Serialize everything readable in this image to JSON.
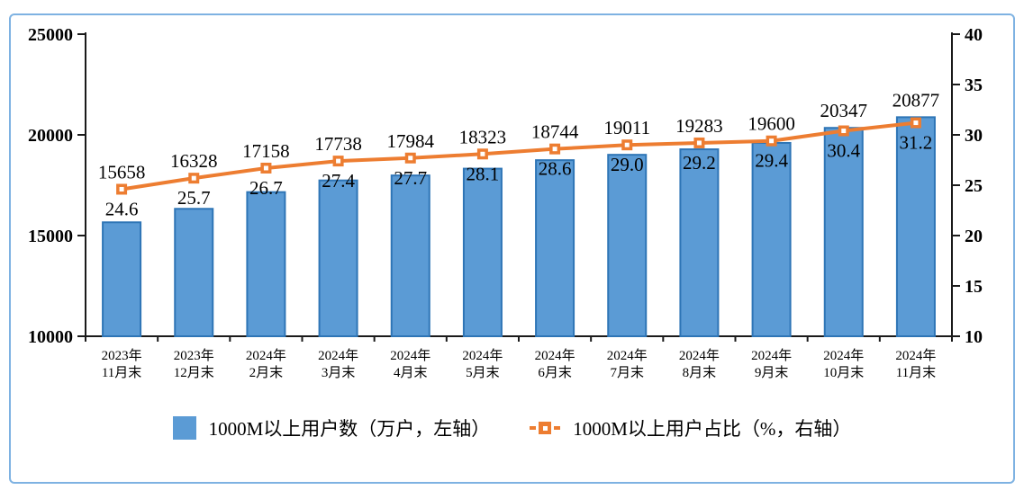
{
  "chart_data": {
    "type": "bar+line combo",
    "title": "",
    "categories": [
      [
        "2023年",
        "11月末"
      ],
      [
        "2023年",
        "12月末"
      ],
      [
        "2024年",
        "2月末"
      ],
      [
        "2024年",
        "3月末"
      ],
      [
        "2024年",
        "4月末"
      ],
      [
        "2024年",
        "5月末"
      ],
      [
        "2024年",
        "6月末"
      ],
      [
        "2024年",
        "7月末"
      ],
      [
        "2024年",
        "8月末"
      ],
      [
        "2024年",
        "9月末"
      ],
      [
        "2024年",
        "10月末"
      ],
      [
        "2024年",
        "11月末"
      ]
    ],
    "series": [
      {
        "name": "1000M以上用户数（万户，左轴）",
        "type": "bar",
        "axis": "left",
        "values": [
          15658,
          16328,
          17158,
          17738,
          17984,
          18323,
          18744,
          19011,
          19283,
          19600,
          20347,
          20877
        ],
        "fill": "#5B9BD5",
        "stroke": "#2E75B6"
      },
      {
        "name": "1000M以上用户占比（%，右轴）",
        "type": "line",
        "axis": "right",
        "values": [
          24.6,
          25.7,
          26.7,
          27.4,
          27.7,
          28.1,
          28.6,
          29.0,
          29.2,
          29.4,
          30.4,
          31.2
        ],
        "color": "#ED7D31",
        "marker": "square-with-white-center"
      }
    ],
    "left_axis": {
      "min": 10000,
      "max": 25000,
      "ticks": [
        10000,
        15000,
        20000,
        25000
      ]
    },
    "right_axis": {
      "min": 10,
      "max": 40,
      "ticks": [
        10,
        15,
        20,
        25,
        30,
        35,
        40
      ]
    },
    "grid": false,
    "legend_position": "bottom",
    "data_labels": true
  },
  "colors": {
    "bar_fill": "#5B9BD5",
    "bar_stroke": "#2E75B6",
    "line": "#ED7D31",
    "axis": "#1a1a1a",
    "frame_border": "#7EB2E2",
    "text": "#000000"
  }
}
